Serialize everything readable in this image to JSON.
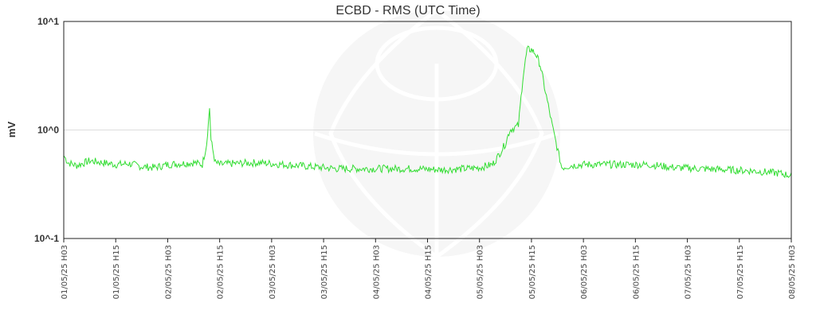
{
  "chart_data": {
    "type": "line",
    "title": "ECBD - RMS (UTC Time)",
    "xlabel": "",
    "ylabel": "mV",
    "y_scale": "log",
    "ylim": [
      0.1,
      10
    ],
    "y_ticks": [
      {
        "value": 0.1,
        "label": "10^-1"
      },
      {
        "value": 1,
        "label": "10^0"
      },
      {
        "value": 10,
        "label": "10^1"
      }
    ],
    "xlim": [
      "2025-05-01T03:00",
      "2025-05-08T03:00"
    ],
    "x_tick_labels": [
      "01/05/25 H03",
      "01/05/25 H15",
      "02/05/25 H03",
      "02/05/25 H15",
      "03/05/25 H03",
      "03/05/25 H15",
      "04/05/25 H03",
      "04/05/25 H15",
      "05/05/25 H03",
      "05/05/25 H15",
      "06/05/25 H03",
      "06/05/25 H15",
      "07/05/25 H03",
      "07/05/25 H15",
      "08/05/25 H03"
    ],
    "grid": "horizontal at decades",
    "line_color": "#33dd33",
    "series": [
      {
        "x": [
          "2025-05-01T03:00",
          "2025-05-01T04:00",
          "2025-05-01T06:00",
          "2025-05-01T09:00",
          "2025-05-01T12:00",
          "2025-05-01T15:00",
          "2025-05-01T18:00",
          "2025-05-01T21:00",
          "2025-05-02T00:00",
          "2025-05-02T03:00",
          "2025-05-02T06:00",
          "2025-05-02T09:00",
          "2025-05-02T11:00",
          "2025-05-02T12:00",
          "2025-05-02T12:40",
          "2025-05-02T13:00",
          "2025-05-02T14:00",
          "2025-05-02T15:00",
          "2025-05-02T18:00",
          "2025-05-03T00:00",
          "2025-05-03T06:00",
          "2025-05-03T12:00",
          "2025-05-03T18:00",
          "2025-05-04T00:00",
          "2025-05-04T06:00",
          "2025-05-04T12:00",
          "2025-05-04T18:00",
          "2025-05-05T00:00",
          "2025-05-05T03:00",
          "2025-05-05T06:00",
          "2025-05-05T07:00",
          "2025-05-05T09:00",
          "2025-05-05T10:00",
          "2025-05-05T12:00",
          "2025-05-05T13:00",
          "2025-05-05T14:00",
          "2025-05-05T15:00",
          "2025-05-05T16:00",
          "2025-05-05T17:00",
          "2025-05-05T18:00",
          "2025-05-05T20:00",
          "2025-05-05T22:00",
          "2025-05-06T00:00",
          "2025-05-06T03:00",
          "2025-05-06T06:00",
          "2025-05-06T12:00",
          "2025-05-06T18:00",
          "2025-05-07T00:00",
          "2025-05-07T06:00",
          "2025-05-07T12:00",
          "2025-05-07T18:00",
          "2025-05-08T00:00",
          "2025-05-08T03:00"
        ],
        "values": [
          0.58,
          0.5,
          0.47,
          0.52,
          0.5,
          0.48,
          0.49,
          0.46,
          0.45,
          0.48,
          0.49,
          0.5,
          0.48,
          0.75,
          1.6,
          0.8,
          0.5,
          0.48,
          0.49,
          0.5,
          0.48,
          0.46,
          0.44,
          0.44,
          0.44,
          0.44,
          0.43,
          0.44,
          0.45,
          0.48,
          0.55,
          0.75,
          1.0,
          1.1,
          3.0,
          5.5,
          5.5,
          5.0,
          4.0,
          2.5,
          1.0,
          0.45,
          0.47,
          0.48,
          0.48,
          0.48,
          0.48,
          0.45,
          0.44,
          0.43,
          0.42,
          0.4,
          0.38
        ]
      }
    ]
  }
}
